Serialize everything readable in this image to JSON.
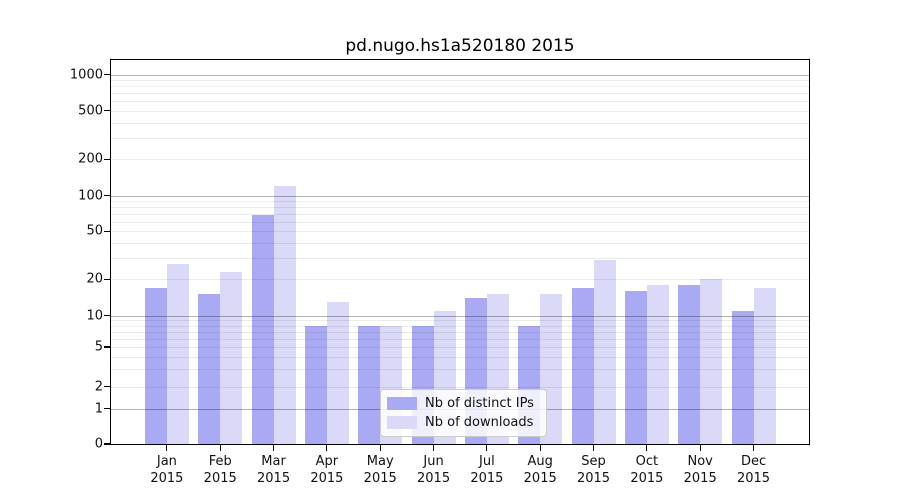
{
  "title": "pd.nugo.hs1a520180 2015",
  "colors": {
    "ips_bar": "#a9a9f4",
    "downloads_bar": "#dadaf8",
    "grid_major": "rgba(0,0,0,0.30)",
    "grid_minor": "rgba(0,0,0,0.08)",
    "axis": "#000000",
    "background": "#ffffff"
  },
  "legend": {
    "items": [
      {
        "label": "Nb of distinct IPs",
        "color_key": "ips_bar"
      },
      {
        "label": "Nb of downloads",
        "color_key": "downloads_bar"
      }
    ]
  },
  "chart_data": {
    "type": "bar",
    "title": "pd.nugo.hs1a520180 2015",
    "categories": [
      "Jan",
      "Feb",
      "Mar",
      "Apr",
      "May",
      "Jun",
      "Jul",
      "Aug",
      "Sep",
      "Oct",
      "Nov",
      "Dec"
    ],
    "x_year": "2015",
    "series": [
      {
        "name": "Nb of distinct IPs",
        "values": [
          17,
          15,
          68,
          8,
          8,
          8,
          14,
          8,
          17,
          16,
          18,
          11
        ]
      },
      {
        "name": "Nb of downloads",
        "values": [
          27,
          23,
          120,
          13,
          8,
          11,
          15,
          15,
          29,
          18,
          20,
          17
        ]
      }
    ],
    "y_ticks": [
      0,
      1,
      2,
      5,
      10,
      20,
      50,
      100,
      200,
      500,
      1000
    ],
    "yscale": "log",
    "ylim": [
      0,
      1300
    ],
    "grid": true,
    "legend_position": "lower center"
  }
}
